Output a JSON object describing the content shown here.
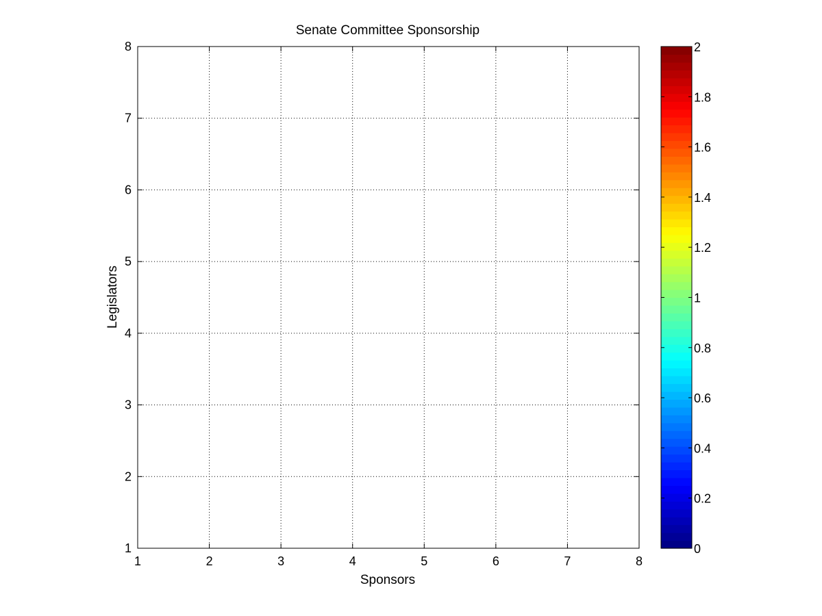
{
  "chart_data": {
    "type": "heatmap",
    "title": "Senate Committee Sponsorship",
    "xlabel": "Sponsors",
    "ylabel": "Legislators",
    "xlim": [
      1,
      8
    ],
    "ylim": [
      1,
      8
    ],
    "x_ticks": [
      "1",
      "2",
      "3",
      "4",
      "5",
      "6",
      "7",
      "8"
    ],
    "y_ticks": [
      "1",
      "2",
      "3",
      "4",
      "5",
      "6",
      "7",
      "8"
    ],
    "grid": true,
    "values": [],
    "colorbar": {
      "colormap": "jet",
      "clim": [
        0,
        2
      ],
      "ticks": [
        "0",
        "0.2",
        "0.4",
        "0.6",
        "0.8",
        "1",
        "1.2",
        "1.4",
        "1.6",
        "1.8",
        "2"
      ],
      "placement": "right"
    }
  }
}
